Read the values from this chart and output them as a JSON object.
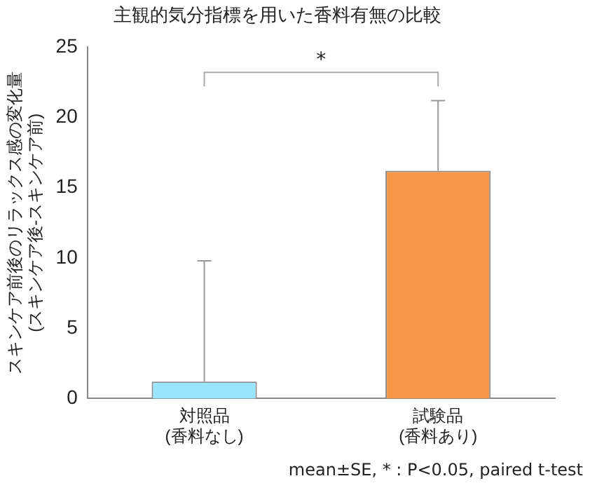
{
  "chart_data": {
    "type": "bar",
    "title": "主観的気分指標を用いた香料有無の比較",
    "ylabel": "スキンケア前後のリラックス感の変化量\n(スキンケア後-スキンケア前)",
    "categories": [
      "対照品\n(香料なし)",
      "試験品\n(香料あり)"
    ],
    "values": [
      1.2,
      16.2
    ],
    "colors": [
      "#99e5ff",
      "#f79646"
    ],
    "errors": [
      [
        1.2,
        9.8
      ],
      [
        16.2,
        21.2
      ]
    ],
    "ylim": [
      0,
      25
    ],
    "yticks": [
      0,
      5,
      10,
      15,
      20,
      25
    ],
    "grid": false,
    "annotations": [
      "*",
      "mean±SE, * : P<0.05, paired t-test"
    ]
  }
}
